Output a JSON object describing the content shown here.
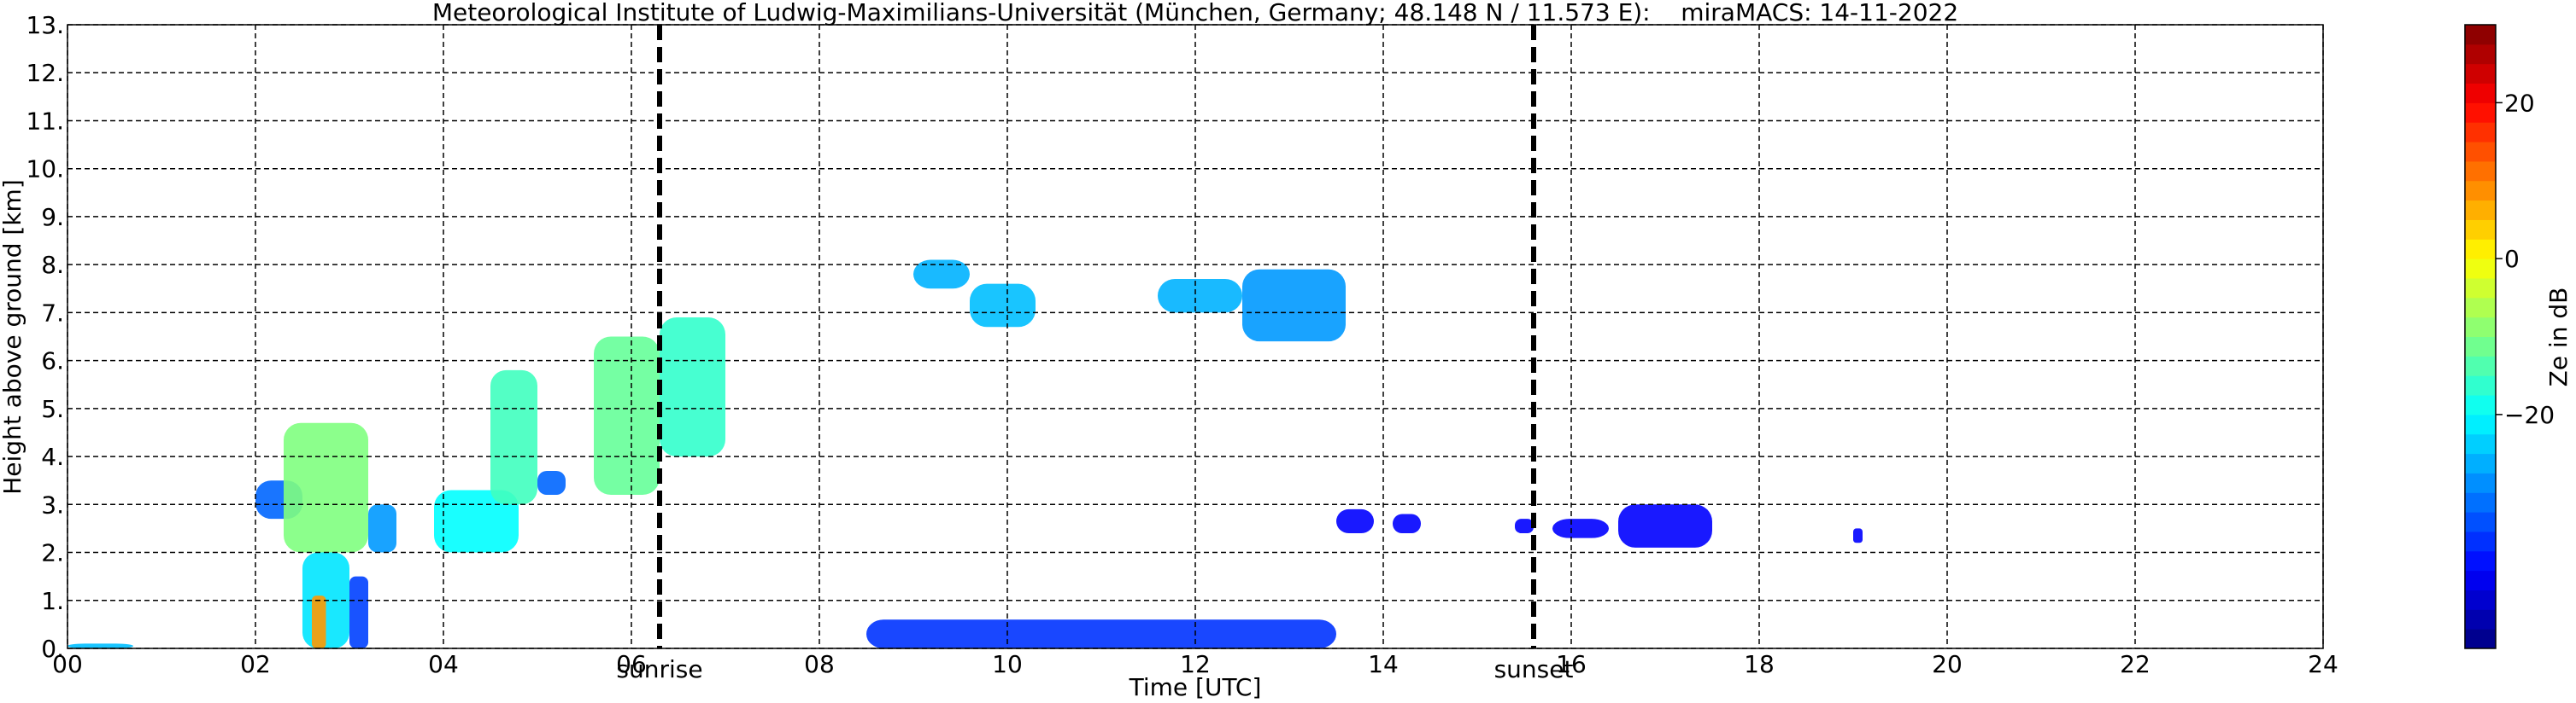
{
  "chart_data": {
    "type": "heatmap",
    "title": "Meteorological Institute of Ludwig-Maximilians-Universität (München, Germany; 48.148 N / 11.573 E):    miraMACS: 14-11-2022",
    "xlabel": "Time [UTC]",
    "ylabel": "Height above ground [km]",
    "colorbar_label": "Ze in dB",
    "colormap": "jet",
    "grid": true,
    "xlim": [
      0,
      24
    ],
    "xticks": [
      {
        "value": 0,
        "label": "00"
      },
      {
        "value": 2,
        "label": "02"
      },
      {
        "value": 4,
        "label": "04"
      },
      {
        "value": 6,
        "label": "06"
      },
      {
        "value": 8,
        "label": "08"
      },
      {
        "value": 10,
        "label": "10"
      },
      {
        "value": 12,
        "label": "12"
      },
      {
        "value": 14,
        "label": "14"
      },
      {
        "value": 16,
        "label": "16"
      },
      {
        "value": 18,
        "label": "18"
      },
      {
        "value": 20,
        "label": "20"
      },
      {
        "value": 22,
        "label": "22"
      },
      {
        "value": 24,
        "label": "24"
      }
    ],
    "ylim": [
      0,
      13
    ],
    "yticks": [
      {
        "value": 0,
        "label": "0."
      },
      {
        "value": 1,
        "label": "1."
      },
      {
        "value": 2,
        "label": "2."
      },
      {
        "value": 3,
        "label": "3."
      },
      {
        "value": 4,
        "label": "4."
      },
      {
        "value": 5,
        "label": "5."
      },
      {
        "value": 6,
        "label": "6."
      },
      {
        "value": 7,
        "label": "7."
      },
      {
        "value": 8,
        "label": "8."
      },
      {
        "value": 9,
        "label": "9."
      },
      {
        "value": 10,
        "label": "10."
      },
      {
        "value": 11,
        "label": "11."
      },
      {
        "value": 12,
        "label": "12."
      },
      {
        "value": 13,
        "label": "13."
      }
    ],
    "clim": [
      -50,
      30
    ],
    "cticks": [
      {
        "value": -20,
        "label": "−20"
      },
      0,
      20
    ],
    "markers": [
      {
        "label": "sunrise",
        "x": 6.3
      },
      {
        "label": "sunset",
        "x": 15.6
      }
    ],
    "echoes": [
      {
        "x": [
          2.0,
          2.5
        ],
        "y": [
          2.7,
          3.5
        ],
        "z": -32
      },
      {
        "x": [
          2.3,
          3.2
        ],
        "y": [
          2.0,
          4.7
        ],
        "z": -10
      },
      {
        "x": [
          3.2,
          3.5
        ],
        "y": [
          2.0,
          3.0
        ],
        "z": -28
      },
      {
        "x": [
          2.5,
          3.0
        ],
        "y": [
          0.0,
          2.0
        ],
        "z": -22
      },
      {
        "x": [
          3.0,
          3.2
        ],
        "y": [
          0.0,
          1.5
        ],
        "z": -35
      },
      {
        "x": [
          2.6,
          2.75
        ],
        "y": [
          0.0,
          1.1
        ],
        "z": 8
      },
      {
        "x": [
          3.9,
          4.8
        ],
        "y": [
          2.0,
          3.3
        ],
        "z": -20
      },
      {
        "x": [
          4.5,
          5.0
        ],
        "y": [
          3.0,
          5.8
        ],
        "z": -15
      },
      {
        "x": [
          5.0,
          5.3
        ],
        "y": [
          3.2,
          3.7
        ],
        "z": -32
      },
      {
        "x": [
          5.6,
          6.3
        ],
        "y": [
          3.2,
          6.5
        ],
        "z": -12
      },
      {
        "x": [
          6.3,
          7.0
        ],
        "y": [
          4.0,
          6.9
        ],
        "z": -16
      },
      {
        "x": [
          9.0,
          9.6
        ],
        "y": [
          7.5,
          8.1
        ],
        "z": -26
      },
      {
        "x": [
          9.6,
          10.3
        ],
        "y": [
          6.7,
          7.6
        ],
        "z": -25
      },
      {
        "x": [
          11.6,
          12.5
        ],
        "y": [
          7.0,
          7.7
        ],
        "z": -26
      },
      {
        "x": [
          12.5,
          13.6
        ],
        "y": [
          6.4,
          7.9
        ],
        "z": -28
      },
      {
        "x": [
          13.5,
          13.9
        ],
        "y": [
          2.4,
          2.9
        ],
        "z": -40
      },
      {
        "x": [
          14.1,
          14.4
        ],
        "y": [
          2.4,
          2.8
        ],
        "z": -40
      },
      {
        "x": [
          15.4,
          15.6
        ],
        "y": [
          2.4,
          2.7
        ],
        "z": -40
      },
      {
        "x": [
          15.8,
          16.4
        ],
        "y": [
          2.3,
          2.7
        ],
        "z": -40
      },
      {
        "x": [
          16.5,
          17.5
        ],
        "y": [
          2.1,
          3.0
        ],
        "z": -40
      },
      {
        "x": [
          19.0,
          19.1
        ],
        "y": [
          2.2,
          2.5
        ],
        "z": -40
      },
      {
        "x": [
          8.5,
          13.5
        ],
        "y": [
          0.0,
          0.6
        ],
        "z": -36
      },
      {
        "x": [
          0.0,
          0.7
        ],
        "y": [
          0.0,
          0.1
        ],
        "z": -25
      }
    ]
  }
}
